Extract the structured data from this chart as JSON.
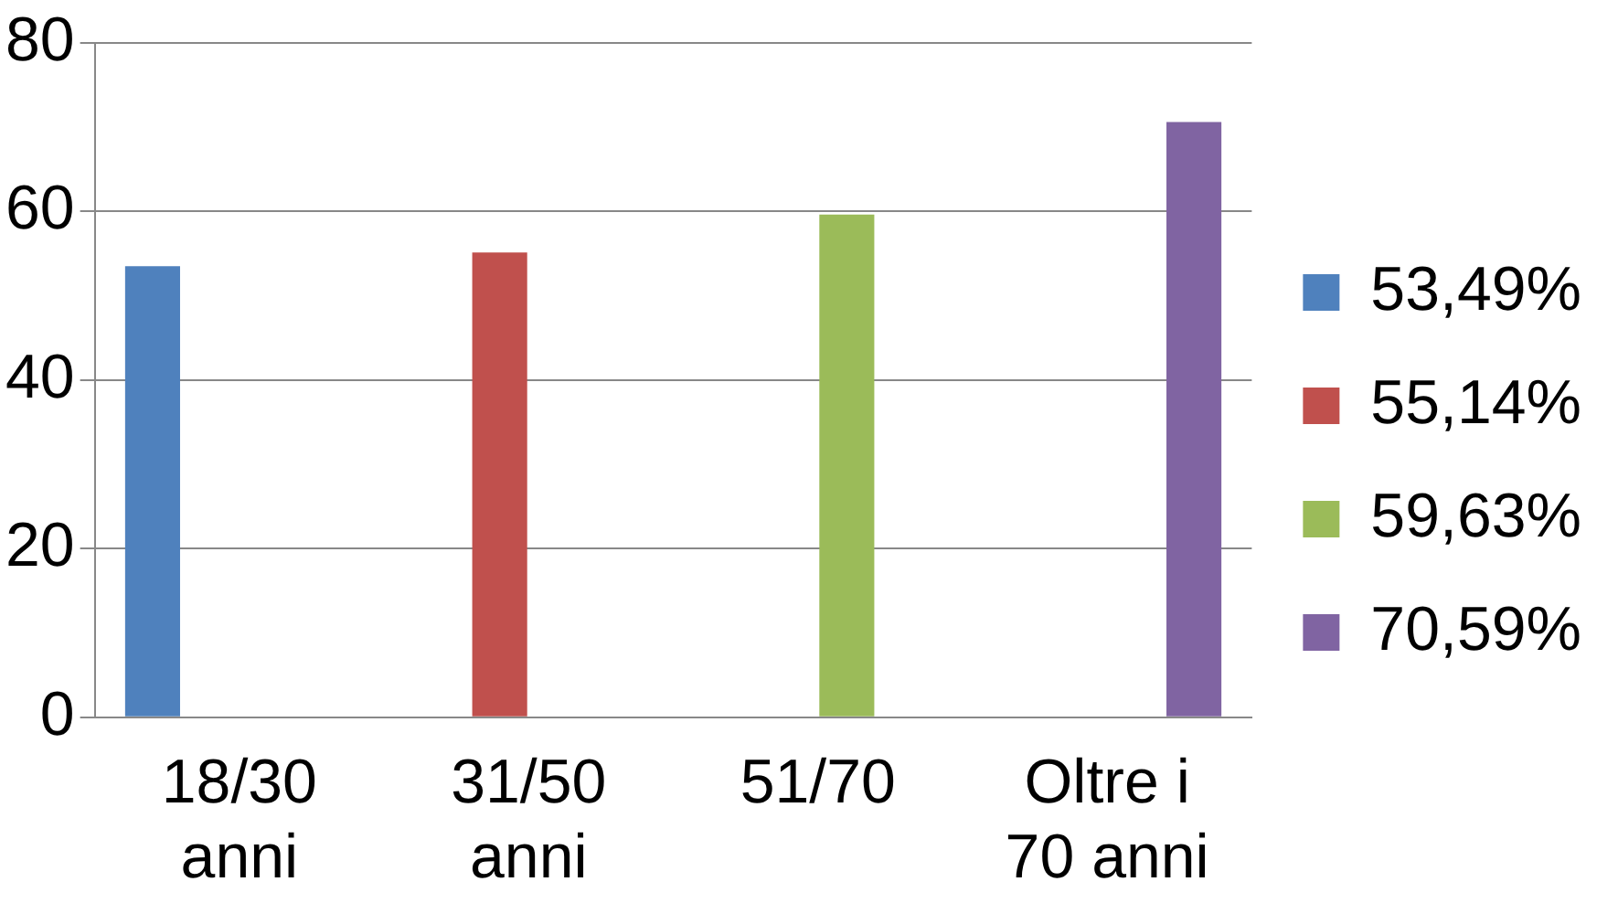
{
  "chart_data": {
    "type": "bar",
    "categories": [
      "18/30 anni",
      "31/50 anni",
      "51/70",
      "Oltre i 70 anni"
    ],
    "series": [
      {
        "name": "53,49%",
        "color": "#4f81bd",
        "values": [
          53.49,
          null,
          null,
          null
        ]
      },
      {
        "name": "55,14%",
        "color": "#c0504d",
        "values": [
          null,
          55.14,
          null,
          null
        ]
      },
      {
        "name": "59,63%",
        "color": "#9bbb59",
        "values": [
          null,
          null,
          59.63,
          null
        ]
      },
      {
        "name": "70,59%",
        "color": "#8064a2",
        "values": [
          null,
          null,
          null,
          70.59
        ]
      }
    ],
    "ylim": [
      0,
      80
    ],
    "yticks": [
      0,
      20,
      40,
      60,
      80
    ],
    "grid": "y",
    "legend": "right"
  }
}
